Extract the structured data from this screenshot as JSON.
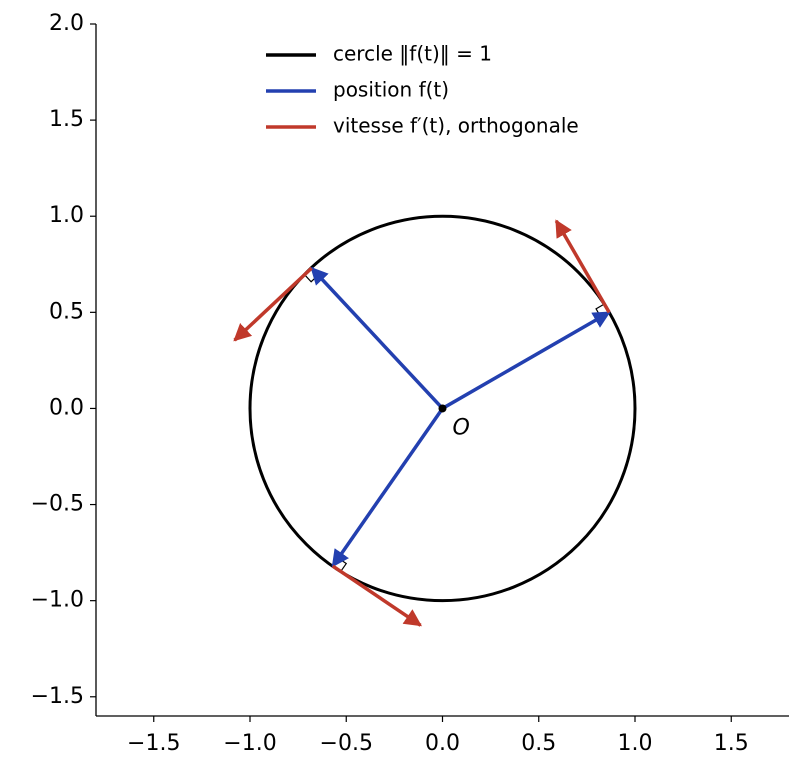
{
  "chart_data": {
    "type": "vector-field",
    "xlim": [
      -1.8,
      1.8
    ],
    "ylim": [
      -1.6,
      2.0
    ],
    "xticks": [
      {
        "value": -1.5,
        "label": "−1.5"
      },
      {
        "value": -1.0,
        "label": "−1.0"
      },
      {
        "value": -0.5,
        "label": "−0.5"
      },
      {
        "value": 0,
        "label": "0.0"
      },
      0.5,
      {
        "value": 1.0,
        "label": "1.0"
      },
      1.5
    ],
    "yticks": [
      {
        "value": -1.5,
        "label": "−1.5"
      },
      {
        "value": -1.0,
        "label": "−1.0"
      },
      {
        "value": -0.5,
        "label": "−0.5"
      },
      {
        "value": 0,
        "label": "0.0"
      },
      0.5,
      {
        "value": 1.0,
        "label": "1.0"
      },
      1.5,
      {
        "value": 2.0,
        "label": "2.0"
      }
    ],
    "circle": {
      "name": "cercle ‖f(t)‖ = 1",
      "color": "#000000",
      "center": [
        0,
        0
      ],
      "radius": 1
    },
    "points": {
      "name": "position f(t)",
      "color": "#2340b0",
      "x": [
        0.866,
        -0.68,
        -0.57
      ],
      "y": [
        0.5,
        0.73,
        -0.82
      ]
    },
    "velocities": {
      "name": "vitesse f′(t), orthogonale",
      "color": "#c0392b",
      "dx": [
        -0.275,
        -0.4,
        0.456
      ],
      "dy": [
        0.476,
        -0.375,
        -0.308
      ]
    },
    "origin_label": "O",
    "legend": "upper center"
  }
}
